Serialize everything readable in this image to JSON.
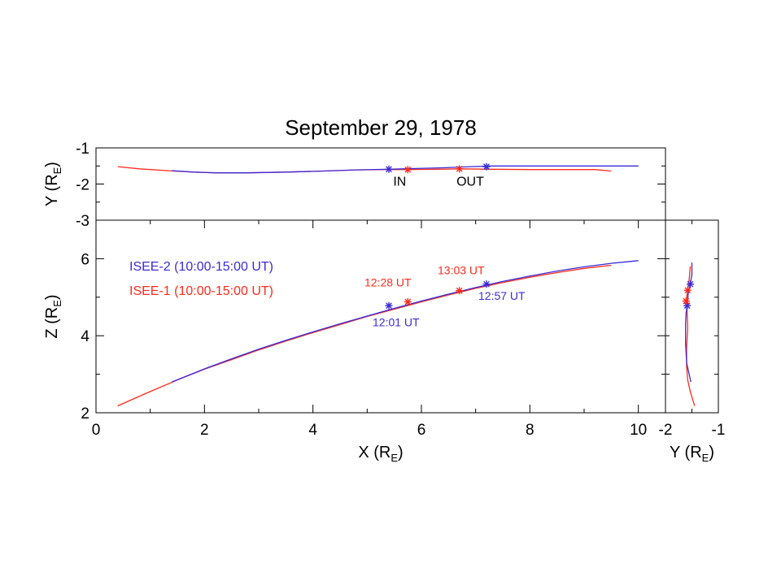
{
  "title": "September 29, 1978",
  "colors": {
    "isee1": "#ff2a1a",
    "isee2": "#3a2bd8"
  },
  "legend": [
    {
      "label": "ISEE-2 (10:00-15:00 UT)",
      "color_key": "isee2"
    },
    {
      "label": "ISEE-1 (10:00-15:00 UT)",
      "color_key": "isee1"
    }
  ],
  "chart_data": [
    {
      "id": "xy",
      "type": "line",
      "xlim": [
        0,
        10.5
      ],
      "ylim": [
        -3,
        -1
      ],
      "xlabel": "",
      "ylabel": {
        "main": "Y (R",
        "sub": "E",
        "close": ")"
      },
      "yticks": [
        "-1",
        "-2",
        "-3"
      ],
      "ytick_values": [
        -1,
        -2,
        -3
      ],
      "minor_y": [
        -1.5,
        -2.5
      ],
      "series": [
        {
          "color_key": "isee1",
          "x": [
            0.4,
            0.8,
            1.3,
            1.8,
            2.2,
            2.8,
            3.5,
            4.2,
            4.8,
            5.3,
            5.8,
            6.3,
            6.7,
            7.3,
            8.0,
            8.7,
            9.2,
            9.5
          ],
          "y": [
            -1.52,
            -1.58,
            -1.63,
            -1.67,
            -1.69,
            -1.69,
            -1.67,
            -1.64,
            -1.61,
            -1.6,
            -1.6,
            -1.59,
            -1.58,
            -1.59,
            -1.6,
            -1.6,
            -1.6,
            -1.64
          ]
        },
        {
          "color_key": "isee2",
          "x": [
            1.4,
            1.8,
            2.2,
            2.8,
            3.5,
            4.2,
            4.8,
            5.4,
            5.9,
            6.4,
            6.9,
            7.3,
            8.0,
            8.7,
            9.3,
            10.0
          ],
          "y": [
            -1.63,
            -1.67,
            -1.69,
            -1.69,
            -1.67,
            -1.64,
            -1.61,
            -1.59,
            -1.57,
            -1.55,
            -1.52,
            -1.5,
            -1.5,
            -1.5,
            -1.5,
            -1.5
          ]
        }
      ],
      "markers": [
        {
          "color_key": "isee2",
          "x": 5.4,
          "y": -1.59
        },
        {
          "color_key": "isee1",
          "x": 5.75,
          "y": -1.6
        },
        {
          "color_key": "isee1",
          "x": 6.7,
          "y": -1.58
        },
        {
          "color_key": "isee2",
          "x": 7.2,
          "y": -1.52
        }
      ],
      "labels": [
        {
          "text": "IN",
          "x": 5.6,
          "y": -2.05
        },
        {
          "text": "OUT",
          "x": 6.9,
          "y": -2.05
        }
      ]
    },
    {
      "id": "xz",
      "type": "line",
      "xlim": [
        0,
        10.5
      ],
      "ylim": [
        2,
        7
      ],
      "xlabel": {
        "main": "X (R",
        "sub": "E",
        "close": ")"
      },
      "ylabel": {
        "main": "Z (R",
        "sub": "E",
        "close": ")"
      },
      "xticks": [
        "0",
        "2",
        "4",
        "6",
        "8",
        "10"
      ],
      "xtick_values": [
        0,
        2,
        4,
        6,
        8,
        10
      ],
      "minor_x": [
        1,
        3,
        5,
        7,
        9
      ],
      "yticks": [
        "2",
        "4",
        "6"
      ],
      "ytick_values": [
        2,
        4,
        6
      ],
      "minor_y": [
        3,
        5
      ],
      "series": [
        {
          "color_key": "isee1",
          "x": [
            0.4,
            1.0,
            1.5,
            2.0,
            2.5,
            3.0,
            3.5,
            4.0,
            4.5,
            5.0,
            5.5,
            6.0,
            6.5,
            7.0,
            7.5,
            8.0,
            8.5,
            9.0,
            9.5
          ],
          "y": [
            2.18,
            2.55,
            2.85,
            3.13,
            3.38,
            3.63,
            3.86,
            4.08,
            4.29,
            4.5,
            4.69,
            4.88,
            5.06,
            5.23,
            5.38,
            5.52,
            5.64,
            5.75,
            5.83
          ]
        },
        {
          "color_key": "isee2",
          "x": [
            1.4,
            2.0,
            2.5,
            3.0,
            3.5,
            4.0,
            4.5,
            5.0,
            5.5,
            6.0,
            6.5,
            7.0,
            7.5,
            8.0,
            8.5,
            9.0,
            9.5,
            10.0
          ],
          "y": [
            2.8,
            3.14,
            3.4,
            3.65,
            3.88,
            4.1,
            4.31,
            4.51,
            4.71,
            4.9,
            5.08,
            5.25,
            5.41,
            5.55,
            5.68,
            5.79,
            5.88,
            5.95
          ]
        }
      ],
      "markers": [
        {
          "color_key": "isee2",
          "x": 5.4,
          "y": 4.78
        },
        {
          "color_key": "isee1",
          "x": 5.75,
          "y": 4.88
        },
        {
          "color_key": "isee1",
          "x": 6.7,
          "y": 5.17
        },
        {
          "color_key": "isee2",
          "x": 7.2,
          "y": 5.34
        }
      ],
      "annotations": [
        {
          "text": "12:28 UT",
          "color_key": "isee1",
          "x": 4.95,
          "y": 5.28
        },
        {
          "text": "13:03 UT",
          "color_key": "isee1",
          "x": 6.3,
          "y": 5.6
        },
        {
          "text": "12:57 UT",
          "color_key": "isee2",
          "x": 7.05,
          "y": 4.93
        },
        {
          "text": "12:01 UT",
          "color_key": "isee2",
          "x": 5.1,
          "y": 4.25
        }
      ]
    },
    {
      "id": "yz",
      "type": "line",
      "xlim": [
        -2,
        -1
      ],
      "ylim": [
        2,
        7
      ],
      "xlabel": {
        "main": "Y (R",
        "sub": "E",
        "close": ")"
      },
      "ylabel": "",
      "xticks": [
        "-2",
        "-1"
      ],
      "xtick_values": [
        -2,
        -1
      ],
      "minor_x": [
        -1.5
      ],
      "minor_y": [
        3,
        4,
        5,
        6
      ],
      "series": [
        {
          "color_key": "isee1",
          "x": [
            -1.45,
            -1.53,
            -1.58,
            -1.6,
            -1.6,
            -1.58,
            -1.59,
            -1.59,
            -1.61,
            -1.58,
            -1.55,
            -1.53
          ],
          "y": [
            2.18,
            2.55,
            2.85,
            3.2,
            3.7,
            4.2,
            4.6,
            4.8,
            4.9,
            5.18,
            5.5,
            5.8
          ]
        },
        {
          "color_key": "isee2",
          "x": [
            -1.52,
            -1.6,
            -1.62,
            -1.62,
            -1.61,
            -1.59,
            -1.57,
            -1.53,
            -1.5,
            -1.5
          ],
          "y": [
            2.8,
            3.3,
            3.8,
            4.3,
            4.6,
            4.78,
            5.1,
            5.34,
            5.6,
            5.9
          ]
        }
      ],
      "markers": [
        {
          "color_key": "isee2",
          "x": -1.59,
          "y": 4.78
        },
        {
          "color_key": "isee1",
          "x": -1.61,
          "y": 4.9
        },
        {
          "color_key": "isee1",
          "x": -1.58,
          "y": 5.18
        },
        {
          "color_key": "isee2",
          "x": -1.53,
          "y": 5.34
        }
      ]
    }
  ]
}
